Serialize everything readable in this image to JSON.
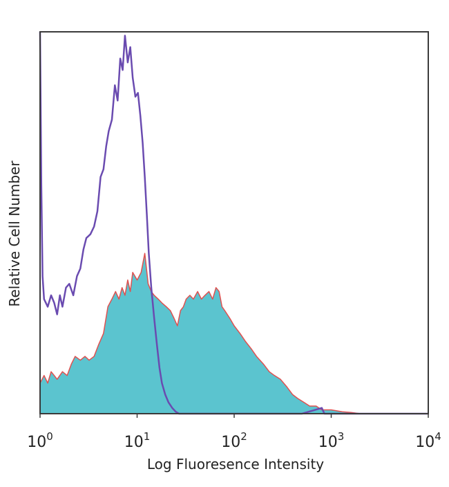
{
  "chart_data": {
    "type": "area",
    "title": "",
    "xlabel": "Log Fluoresence Intensity",
    "ylabel": "Relative Cell Number",
    "x_scale": "log",
    "xlim": [
      1,
      10000
    ],
    "ylim": [
      0,
      100
    ],
    "grid": false,
    "legend": "none",
    "x_ticks": [
      {
        "base": "10",
        "exp": "0"
      },
      {
        "base": "10",
        "exp": "1"
      },
      {
        "base": "10",
        "exp": "2"
      },
      {
        "base": "10",
        "exp": "3"
      },
      {
        "base": "10",
        "exp": "4"
      }
    ],
    "series": [
      {
        "style": "filled",
        "fill_color": "#5bc4cf",
        "line_color": "#e0504f",
        "points": [
          [
            1.0,
            8
          ],
          [
            1.1,
            10
          ],
          [
            1.2,
            8
          ],
          [
            1.3,
            11
          ],
          [
            1.4,
            10
          ],
          [
            1.5,
            9
          ],
          [
            1.7,
            11
          ],
          [
            1.9,
            10
          ],
          [
            2.1,
            13
          ],
          [
            2.3,
            15
          ],
          [
            2.6,
            14
          ],
          [
            2.9,
            15
          ],
          [
            3.2,
            14
          ],
          [
            3.6,
            15
          ],
          [
            4.0,
            18
          ],
          [
            4.5,
            21
          ],
          [
            5.0,
            28
          ],
          [
            5.5,
            30
          ],
          [
            6.0,
            32
          ],
          [
            6.5,
            30
          ],
          [
            7.0,
            33
          ],
          [
            7.5,
            31
          ],
          [
            8.0,
            35
          ],
          [
            8.5,
            32
          ],
          [
            9.0,
            37
          ],
          [
            10.0,
            35
          ],
          [
            11.0,
            37
          ],
          [
            12.0,
            42
          ],
          [
            13.0,
            34
          ],
          [
            14.0,
            32
          ],
          [
            15.0,
            31
          ],
          [
            16.5,
            30
          ],
          [
            18.0,
            29
          ],
          [
            20.0,
            28
          ],
          [
            22.0,
            27
          ],
          [
            24.0,
            25
          ],
          [
            26.0,
            23
          ],
          [
            28.0,
            27
          ],
          [
            30.0,
            28
          ],
          [
            32.0,
            30
          ],
          [
            35.0,
            31
          ],
          [
            38.0,
            30
          ],
          [
            42.0,
            32
          ],
          [
            46.0,
            30
          ],
          [
            50.0,
            31
          ],
          [
            55.0,
            32
          ],
          [
            60.0,
            30
          ],
          [
            65.0,
            33
          ],
          [
            70.0,
            32
          ],
          [
            75.0,
            28
          ],
          [
            80.0,
            27
          ],
          [
            90.0,
            25
          ],
          [
            100.0,
            23
          ],
          [
            115.0,
            21
          ],
          [
            130.0,
            19
          ],
          [
            150.0,
            17
          ],
          [
            170.0,
            15
          ],
          [
            200.0,
            13
          ],
          [
            230.0,
            11
          ],
          [
            260.0,
            10
          ],
          [
            300.0,
            9
          ],
          [
            350.0,
            7
          ],
          [
            400.0,
            5
          ],
          [
            450.0,
            4
          ],
          [
            520.0,
            3
          ],
          [
            600.0,
            2
          ],
          [
            700.0,
            2
          ],
          [
            800.0,
            1
          ],
          [
            1000.0,
            1
          ],
          [
            1300.0,
            0.5
          ],
          [
            1600.0,
            0.3
          ],
          [
            2000.0,
            0
          ]
        ]
      },
      {
        "style": "line",
        "line_color": "#6a4bb0",
        "points": [
          [
            1.0,
            100
          ],
          [
            1.03,
            60
          ],
          [
            1.06,
            36
          ],
          [
            1.1,
            30
          ],
          [
            1.2,
            28
          ],
          [
            1.3,
            31
          ],
          [
            1.4,
            29
          ],
          [
            1.5,
            26
          ],
          [
            1.6,
            31
          ],
          [
            1.7,
            28
          ],
          [
            1.85,
            33
          ],
          [
            2.0,
            34
          ],
          [
            2.2,
            31
          ],
          [
            2.4,
            36
          ],
          [
            2.6,
            38
          ],
          [
            2.8,
            43
          ],
          [
            3.0,
            46
          ],
          [
            3.3,
            47
          ],
          [
            3.6,
            49
          ],
          [
            3.9,
            53
          ],
          [
            4.2,
            62
          ],
          [
            4.5,
            64
          ],
          [
            4.8,
            70
          ],
          [
            5.1,
            74
          ],
          [
            5.5,
            77
          ],
          [
            5.9,
            86
          ],
          [
            6.3,
            82
          ],
          [
            6.7,
            93
          ],
          [
            7.1,
            90
          ],
          [
            7.5,
            99
          ],
          [
            8.0,
            92
          ],
          [
            8.5,
            96
          ],
          [
            9.0,
            88
          ],
          [
            9.6,
            83
          ],
          [
            10.2,
            84
          ],
          [
            10.8,
            78
          ],
          [
            11.4,
            71
          ],
          [
            12.0,
            62
          ],
          [
            12.6,
            52
          ],
          [
            13.2,
            42
          ],
          [
            14.0,
            33
          ],
          [
            15.0,
            25
          ],
          [
            16.0,
            18
          ],
          [
            17.0,
            12
          ],
          [
            18.0,
            8
          ],
          [
            19.5,
            5
          ],
          [
            21.0,
            3
          ],
          [
            23.0,
            1.5
          ],
          [
            25.0,
            0.5
          ],
          [
            27.0,
            0
          ],
          [
            40.0,
            0
          ],
          [
            100.0,
            0
          ],
          [
            500.0,
            0
          ],
          [
            800.0,
            1.5
          ],
          [
            850.0,
            0
          ],
          [
            10000.0,
            0
          ]
        ]
      }
    ]
  }
}
